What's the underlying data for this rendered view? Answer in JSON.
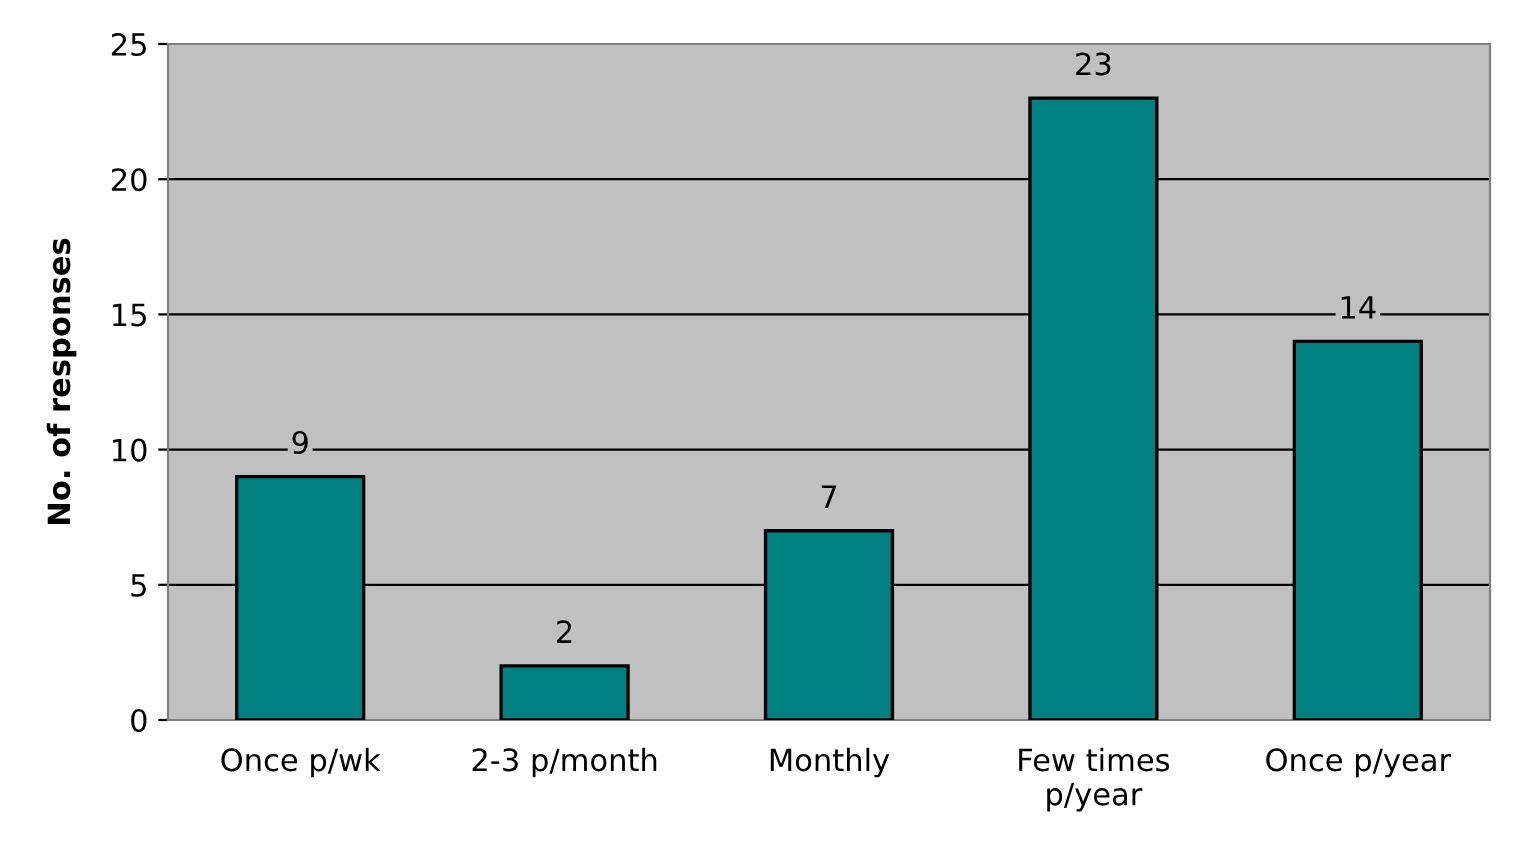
{
  "chart_data": {
    "type": "bar",
    "ylabel": "No. of responses",
    "categories": [
      "Once p/wk",
      "2-3 p/month",
      "Monthly",
      "Few times\np/year",
      "Once p/year"
    ],
    "values": [
      9,
      2,
      7,
      23,
      14
    ],
    "color": "#008080",
    "ylim": [
      0,
      25
    ],
    "yticks": [
      0,
      5,
      10,
      15,
      20,
      25
    ],
    "grid": "y",
    "data_labels": true
  }
}
